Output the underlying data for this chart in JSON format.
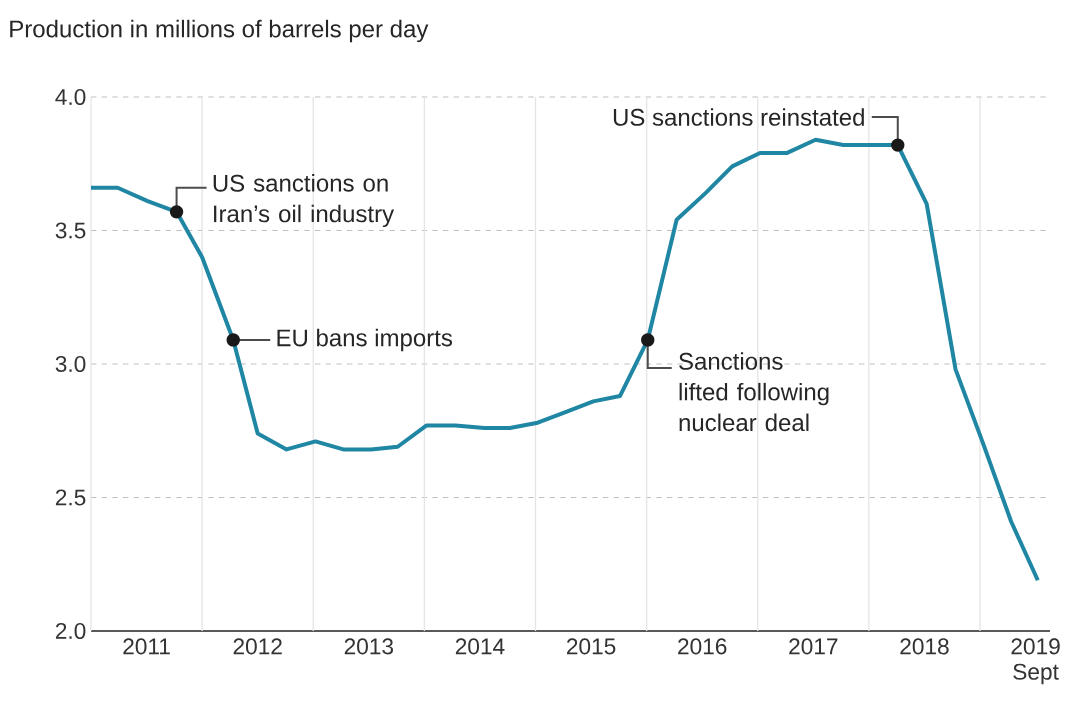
{
  "chart_data": {
    "type": "line",
    "ylabel": "Production in millions of barrels per day",
    "x": [
      2011.0,
      2011.24,
      2011.51,
      2011.77,
      2012.0,
      2012.28,
      2012.5,
      2012.76,
      2013.02,
      2013.27,
      2013.52,
      2013.76,
      2014.02,
      2014.28,
      2014.54,
      2014.77,
      2015.02,
      2015.27,
      2015.52,
      2015.76,
      2016.01,
      2016.27,
      2016.53,
      2016.77,
      2017.02,
      2017.26,
      2017.52,
      2017.77,
      2018.01,
      2018.26,
      2018.52,
      2018.78,
      2019.03,
      2019.28,
      2019.52
    ],
    "values": [
      3.66,
      3.66,
      3.61,
      3.57,
      3.4,
      3.09,
      2.74,
      2.68,
      2.71,
      2.68,
      2.68,
      2.69,
      2.77,
      2.77,
      2.76,
      2.76,
      2.78,
      2.82,
      2.86,
      2.88,
      3.09,
      3.54,
      3.64,
      3.74,
      3.79,
      3.79,
      3.84,
      3.82,
      3.82,
      3.82,
      3.6,
      2.98,
      2.7,
      2.41,
      2.19
    ],
    "color": "#1f86a3",
    "xlim": [
      2011,
      2019.63
    ],
    "ylim": [
      2,
      4
    ],
    "xticks": [
      {
        "value": 2011,
        "label": null
      },
      {
        "value": 2011.5,
        "label": "2011"
      },
      {
        "value": 2012,
        "label": null
      },
      {
        "value": 2012.5,
        "label": "2012"
      },
      {
        "value": 2013,
        "label": null
      },
      {
        "value": 2013.5,
        "label": "2013"
      },
      {
        "value": 2014,
        "label": null
      },
      {
        "value": 2014.5,
        "label": "2014"
      },
      {
        "value": 2015,
        "label": null
      },
      {
        "value": 2015.5,
        "label": "2015"
      },
      {
        "value": 2016,
        "label": null
      },
      {
        "value": 2016.5,
        "label": "2016"
      },
      {
        "value": 2017,
        "label": null
      },
      {
        "value": 2017.5,
        "label": "2017"
      },
      {
        "value": 2018,
        "label": null
      },
      {
        "value": 2018.5,
        "label": "2018"
      },
      {
        "value": 2019,
        "label": null
      },
      {
        "value": 2019.5,
        "label": "2019 Sept"
      }
    ],
    "yticks": [
      {
        "value": 2,
        "label": "2.0"
      },
      {
        "value": 2.5,
        "label": "2.5"
      },
      {
        "value": 3,
        "label": "3.0"
      },
      {
        "value": 3.5,
        "label": "3.5"
      },
      {
        "value": 4,
        "label": "4.0"
      }
    ],
    "grid": true,
    "annotations": [
      {
        "text": "US sanctions on Iran’s oil industry",
        "x": 2011.77,
        "y": 3.57
      },
      {
        "text": "EU bans imports",
        "x": 2012.28,
        "y": 3.09
      },
      {
        "text": "Sanctions lifted following nuclear deal",
        "x": 2016.01,
        "y": 3.09
      },
      {
        "text": "US sanctions reinstated",
        "x": 2018.26,
        "y": 3.82
      }
    ]
  }
}
